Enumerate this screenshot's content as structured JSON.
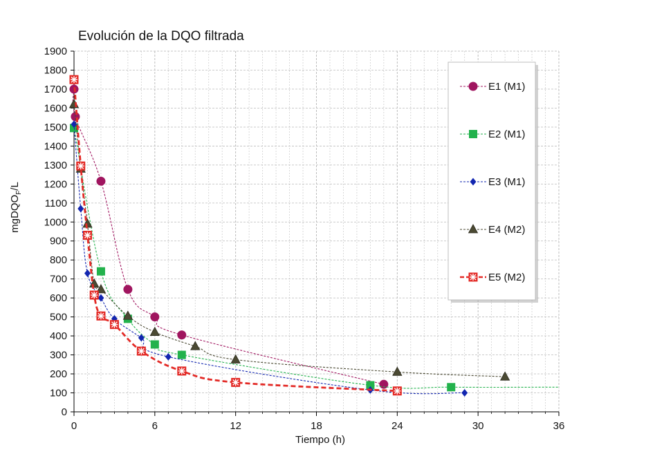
{
  "chart_data": {
    "type": "line",
    "title": "Evolución de la DQO filtrada",
    "xlabel": "Tiempo (h)",
    "ylabel_main": "mgDQO",
    "ylabel_sub": "F",
    "ylabel_tail": "/L",
    "xlim": [
      0,
      36
    ],
    "ylim": [
      0,
      1900
    ],
    "xticks": [
      0,
      6,
      12,
      18,
      24,
      30,
      36
    ],
    "yticks": [
      0,
      100,
      200,
      300,
      400,
      500,
      600,
      700,
      800,
      900,
      1000,
      1100,
      1200,
      1300,
      1400,
      1500,
      1600,
      1700,
      1800,
      1900
    ],
    "grid": true,
    "legend_position": "right",
    "series": [
      {
        "name": "E1 (M1)",
        "color": "#a0155f",
        "marker": "circle",
        "points": [
          [
            0,
            1700
          ],
          [
            0.1,
            1555
          ],
          [
            2,
            1215
          ],
          [
            4,
            645
          ],
          [
            6,
            500
          ],
          [
            8,
            405
          ],
          [
            23,
            145
          ]
        ]
      },
      {
        "name": "E2 (M1)",
        "color": "#22b24c",
        "marker": "square",
        "points": [
          [
            0,
            1495
          ],
          [
            2,
            740
          ],
          [
            4,
            490
          ],
          [
            6,
            355
          ],
          [
            8,
            300
          ],
          [
            22,
            140
          ],
          [
            28,
            130
          ],
          [
            36,
            130
          ]
        ]
      },
      {
        "name": "E3 (M1)",
        "color": "#1226b0",
        "marker": "diamond",
        "points": [
          [
            0,
            1515
          ],
          [
            0.5,
            1070
          ],
          [
            1,
            730
          ],
          [
            2,
            600
          ],
          [
            3,
            490
          ],
          [
            5,
            390
          ],
          [
            7,
            290
          ],
          [
            22,
            115
          ],
          [
            29,
            100
          ]
        ]
      },
      {
        "name": "E4 (M2)",
        "color": "#4b4a33",
        "marker": "triangle",
        "points": [
          [
            0,
            1620
          ],
          [
            0.5,
            1280
          ],
          [
            1,
            990
          ],
          [
            1.5,
            675
          ],
          [
            2,
            645
          ],
          [
            4,
            505
          ],
          [
            6,
            420
          ],
          [
            9,
            345
          ],
          [
            12,
            275
          ],
          [
            24,
            210
          ],
          [
            32,
            185
          ]
        ]
      },
      {
        "name": "E5 (M2)",
        "color": "#e32a26",
        "marker": "xsquare",
        "points": [
          [
            0,
            1750
          ],
          [
            0.5,
            1295
          ],
          [
            1,
            930
          ],
          [
            1.5,
            615
          ],
          [
            2,
            505
          ],
          [
            3,
            460
          ],
          [
            5,
            320
          ],
          [
            8,
            215
          ],
          [
            12,
            155
          ],
          [
            24,
            110
          ]
        ]
      }
    ]
  }
}
